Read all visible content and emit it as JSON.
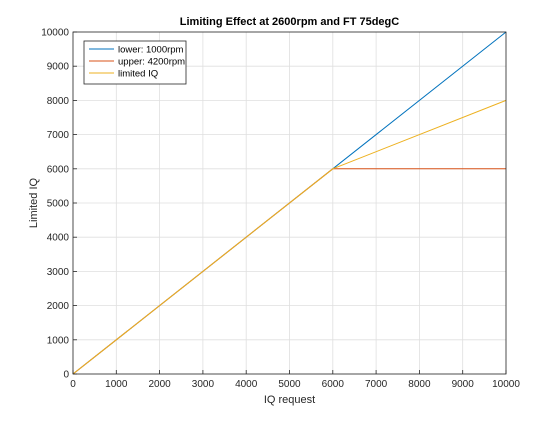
{
  "chart_data": {
    "type": "line",
    "title": "Limiting Effect at 2600rpm and FT 75degC",
    "xlabel": "IQ request",
    "ylabel": "Limited IQ",
    "xlim": [
      0,
      10000
    ],
    "ylim": [
      0,
      10000
    ],
    "x_ticks": [
      0,
      1000,
      2000,
      3000,
      4000,
      5000,
      6000,
      7000,
      8000,
      9000,
      10000
    ],
    "y_ticks": [
      0,
      1000,
      2000,
      3000,
      4000,
      5000,
      6000,
      7000,
      8000,
      9000,
      10000
    ],
    "grid": true,
    "legend_placement": "top-left",
    "series": [
      {
        "name": "lower: 1000rpm",
        "color": "#0072BD",
        "x": [
          0,
          10000
        ],
        "y": [
          0,
          10000
        ]
      },
      {
        "name": "upper: 4200rpm",
        "color": "#D95319",
        "x": [
          0,
          6000,
          10000
        ],
        "y": [
          0,
          6000,
          6000
        ]
      },
      {
        "name": "limited IQ",
        "color": "#EDB120",
        "x": [
          0,
          6000,
          10000
        ],
        "y": [
          0,
          6000,
          8000
        ]
      }
    ]
  }
}
